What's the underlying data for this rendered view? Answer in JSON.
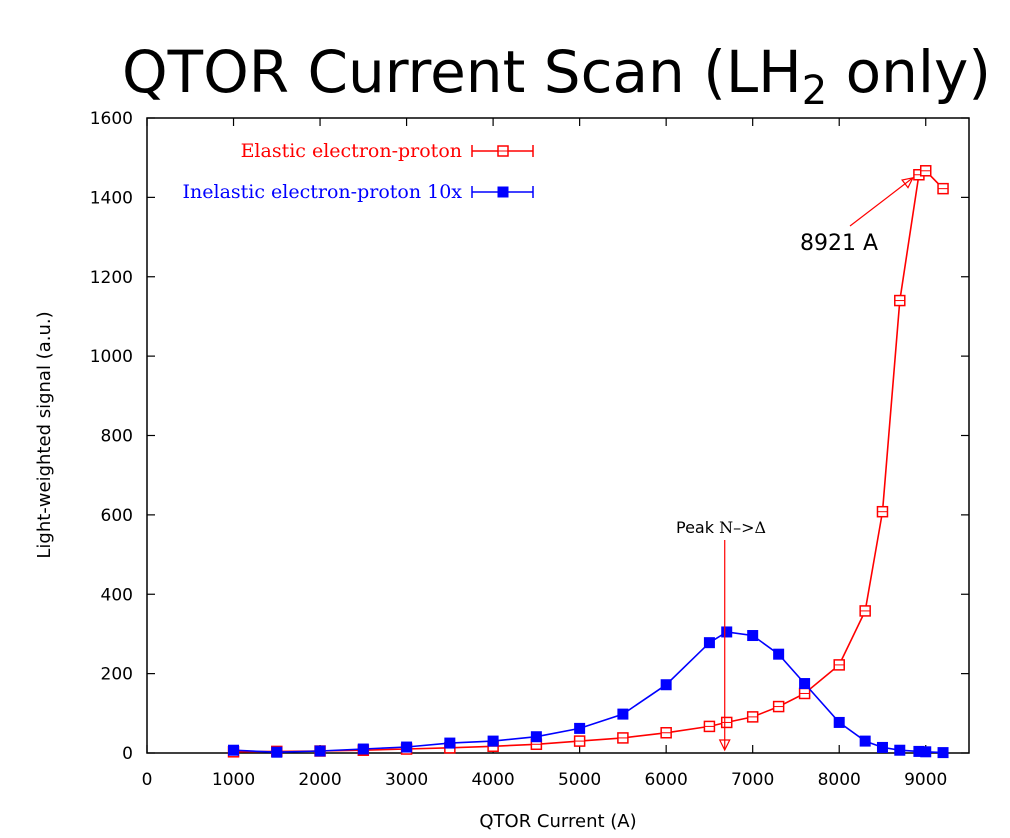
{
  "chart_data": {
    "type": "line",
    "title_main": "QTOR Current Scan (LH",
    "title_sub": "2",
    "title_end": " only)",
    "xlabel": "QTOR Current (A)",
    "ylabel": "Light-weighted signal (a.u.)",
    "xlim": [
      0,
      9500
    ],
    "ylim": [
      0,
      1600
    ],
    "xticks": [
      0,
      1000,
      2000,
      3000,
      4000,
      5000,
      6000,
      7000,
      8000,
      9000
    ],
    "yticks": [
      0,
      200,
      400,
      600,
      800,
      1000,
      1200,
      1400,
      1600
    ],
    "grid": false,
    "legend_position": "top-left",
    "series": [
      {
        "name": "Elastic electron-proton",
        "color": "#ff0000",
        "marker": "open-square",
        "x": [
          1000,
          1500,
          2000,
          2500,
          3000,
          3500,
          4000,
          4500,
          5000,
          5500,
          6000,
          6500,
          6700,
          7000,
          7300,
          7600,
          8000,
          8300,
          8500,
          8700,
          8921,
          9000,
          9200
        ],
        "y": [
          3,
          4,
          5,
          7,
          10,
          13,
          17,
          22,
          30,
          38,
          51,
          67,
          77,
          91,
          117,
          150,
          222,
          358,
          608,
          1140,
          1457,
          1467,
          1422
        ]
      },
      {
        "name": "Inelastic electron-proton 10x",
        "color": "#0000ff",
        "marker": "filled-square",
        "x": [
          1000,
          1500,
          2000,
          2500,
          3000,
          3500,
          4000,
          4500,
          5000,
          5500,
          6000,
          6500,
          6700,
          7000,
          7300,
          7600,
          8000,
          8300,
          8500,
          8700,
          8921,
          9000,
          9200
        ],
        "y": [
          7,
          2,
          5,
          10,
          15,
          25,
          30,
          41,
          62,
          98,
          172,
          278,
          305,
          296,
          249,
          175,
          77,
          30,
          14,
          7,
          4,
          3,
          1
        ]
      }
    ],
    "annotations": [
      {
        "text": "8921 A",
        "x": 8921,
        "y": 1457
      },
      {
        "text_prefix": "Peak ",
        "text_suffix": "N–>Δ",
        "x": 6700,
        "y": 0
      }
    ]
  }
}
